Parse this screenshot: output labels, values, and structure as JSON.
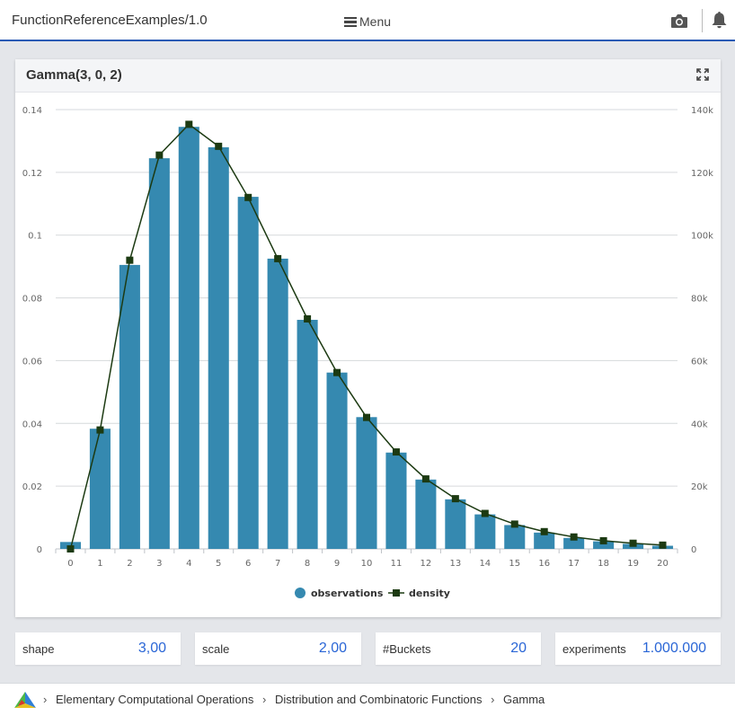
{
  "app": {
    "title": "FunctionReferenceExamples/1.0",
    "menu_label": "Menu",
    "icons": [
      "bars-icon",
      "camera-icon",
      "bell-icon",
      "expand-icon"
    ]
  },
  "panel": {
    "title": "Gamma(3, 0, 2)"
  },
  "chart_data": {
    "type": "bar",
    "title": "",
    "xlabel": "",
    "ylabel": "",
    "categories": [
      "0",
      "1",
      "2",
      "3",
      "4",
      "5",
      "6",
      "7",
      "8",
      "9",
      "10",
      "11",
      "12",
      "13",
      "14",
      "15",
      "16",
      "17",
      "18",
      "19",
      "20"
    ],
    "series": [
      {
        "name": "observations",
        "type": "bar",
        "axis": "left",
        "color": "#3589b0",
        "values": [
          0.0022,
          0.0383,
          0.0905,
          0.1245,
          0.1345,
          0.128,
          0.1122,
          0.0925,
          0.073,
          0.0562,
          0.042,
          0.0307,
          0.0221,
          0.0158,
          0.011,
          0.0076,
          0.0052,
          0.0035,
          0.0024,
          0.0016,
          0.001
        ]
      },
      {
        "name": "density",
        "type": "line",
        "axis": "right",
        "color": "#1c3a12",
        "values": [
          0,
          37900,
          92000,
          125500,
          135300,
          128300,
          112000,
          92500,
          73300,
          56200,
          41900,
          30900,
          22300,
          16000,
          11300,
          7900,
          5500,
          3800,
          2600,
          1800,
          1200
        ]
      }
    ],
    "y_left": {
      "range": [
        0,
        0.14
      ],
      "ticks": [
        "0",
        "0.02",
        "0.04",
        "0.06",
        "0.08",
        "0.1",
        "0.12",
        "0.14"
      ]
    },
    "y_right": {
      "range": [
        0,
        140000
      ],
      "ticks": [
        "0",
        "20k",
        "40k",
        "60k",
        "80k",
        "100k",
        "120k",
        "140k"
      ]
    },
    "grid": true,
    "legend": "bottom-center"
  },
  "params": [
    {
      "label": "shape",
      "value": "3,00"
    },
    {
      "label": "scale",
      "value": "2,00"
    },
    {
      "label": "#Buckets",
      "value": "20"
    },
    {
      "label": "experiments",
      "value": "1.000.000"
    }
  ],
  "breadcrumb": [
    "Elementary Computational Operations",
    "Distribution and Combinatoric Functions",
    "Gamma"
  ]
}
